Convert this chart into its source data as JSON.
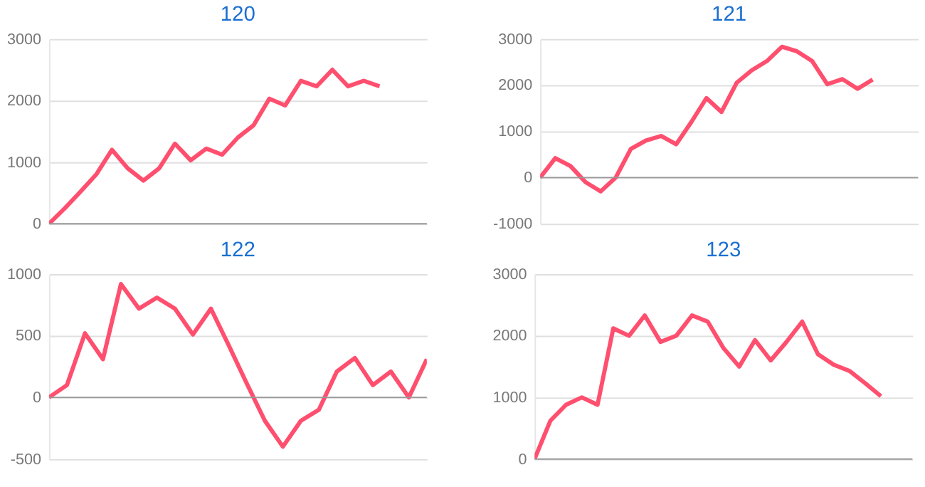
{
  "chart_data": [
    {
      "type": "line",
      "title": "120",
      "categories": [
        null,
        null,
        null,
        null,
        null,
        null,
        null,
        null,
        null,
        null,
        null,
        null,
        null,
        null,
        null,
        null,
        null,
        null,
        null,
        null,
        null,
        null,
        null,
        null,
        null
      ],
      "series": [
        {
          "color": "#ff4f6f",
          "values": [
            0,
            250,
            520,
            800,
            1200,
            900,
            700,
            900,
            1300,
            1030,
            1220,
            1120,
            1400,
            1600,
            2030,
            1920,
            2320,
            2230,
            2500,
            2230,
            2320,
            2230,
            null,
            null,
            null
          ]
        }
      ],
      "ylim": [
        0,
        3000
      ],
      "yticks": [
        0,
        1000,
        2000,
        3000
      ],
      "grid": "y",
      "tick_labels": "y",
      "marker": "none",
      "line_style": "solid",
      "ref_lines": [
        {
          "axis": "y",
          "value": 0,
          "color": "#999999"
        }
      ]
    },
    {
      "type": "line",
      "title": "121",
      "categories": [
        null,
        null,
        null,
        null,
        null,
        null,
        null,
        null,
        null,
        null,
        null,
        null,
        null,
        null,
        null,
        null,
        null,
        null,
        null,
        null,
        null,
        null,
        null,
        null,
        null,
        null
      ],
      "series": [
        {
          "color": "#ff4f6f",
          "values": [
            0,
            420,
            250,
            -100,
            -300,
            0,
            620,
            800,
            900,
            720,
            1200,
            1720,
            1420,
            2050,
            2320,
            2520,
            2830,
            2730,
            2520,
            2020,
            2130,
            1920,
            2120,
            null,
            null,
            null
          ]
        }
      ],
      "ylim": [
        -1000,
        3000
      ],
      "yticks": [
        -1000,
        0,
        1000,
        2000,
        3000
      ],
      "grid": "y",
      "tick_labels": "y",
      "marker": "none",
      "line_style": "solid",
      "ref_lines": [
        {
          "axis": "y",
          "value": 0,
          "color": "#999999"
        }
      ]
    },
    {
      "type": "line",
      "title": "122",
      "categories": [
        null,
        null,
        null,
        null,
        null,
        null,
        null,
        null,
        null,
        null,
        null,
        null,
        null,
        null,
        null,
        null,
        null,
        null,
        null,
        null,
        null,
        null
      ],
      "series": [
        {
          "color": "#ff4f6f",
          "values": [
            0,
            100,
            520,
            310,
            920,
            720,
            810,
            720,
            510,
            720,
            420,
            110,
            -190,
            -400,
            -190,
            -100,
            210,
            320,
            100,
            210,
            0,
            310
          ]
        }
      ],
      "ylim": [
        -500,
        1000
      ],
      "yticks": [
        -500,
        0,
        500,
        1000
      ],
      "grid": "y",
      "tick_labels": "y",
      "marker": "none",
      "line_style": "solid",
      "ref_lines": [
        {
          "axis": "y",
          "value": 0,
          "color": "#999999"
        }
      ]
    },
    {
      "type": "line",
      "title": "123",
      "categories": [
        null,
        null,
        null,
        null,
        null,
        null,
        null,
        null,
        null,
        null,
        null,
        null,
        null,
        null,
        null,
        null,
        null,
        null,
        null,
        null,
        null,
        null,
        null,
        null,
        null
      ],
      "series": [
        {
          "color": "#ff4f6f",
          "values": [
            0,
            620,
            880,
            1000,
            880,
            2120,
            2000,
            2330,
            1900,
            2000,
            2330,
            2230,
            1800,
            1500,
            1930,
            1600,
            1900,
            2230,
            1700,
            1530,
            1430,
            1230,
            1020,
            null,
            null
          ]
        }
      ],
      "ylim": [
        0,
        3000
      ],
      "yticks": [
        0,
        1000,
        2000,
        3000
      ],
      "grid": "y",
      "tick_labels": "y",
      "marker": "none",
      "line_style": "solid",
      "ref_lines": [
        {
          "axis": "y",
          "value": 0,
          "color": "#999999"
        }
      ]
    }
  ]
}
